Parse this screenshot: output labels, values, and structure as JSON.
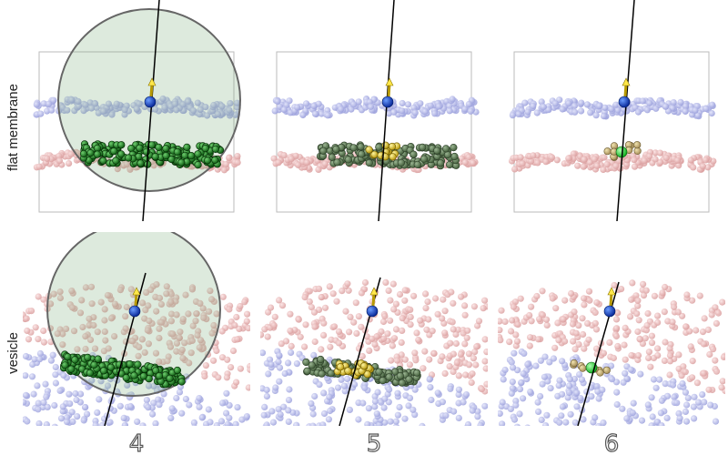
{
  "row_labels": [
    "flat membrane",
    "vesicle"
  ],
  "column_labels": [
    "4",
    "5",
    "6"
  ]
}
